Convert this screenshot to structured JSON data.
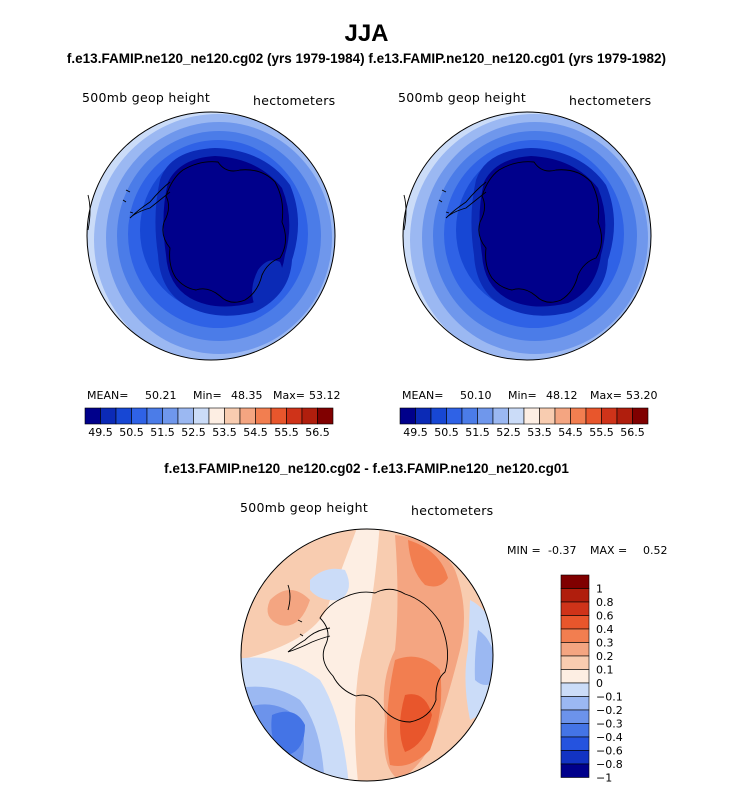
{
  "figure": {
    "title": "JJA",
    "runs_header": "f.e13.FAMIP.ne120_ne120.cg02 (yrs 1979-1984)  f.e13.FAMIP.ne120_ne120.cg01 (yrs 1979-1982)",
    "diff_title": "f.e13.FAMIP.ne120_ne120.cg02 - f.e13.FAMIP.ne120_ne120.cg01"
  },
  "colors": {
    "main_scale": [
      "#00008b",
      "#0b2ab6",
      "#1747d4",
      "#2f62e6",
      "#4b7ce8",
      "#6f97ec",
      "#9bb8f2",
      "#cbdcf8",
      "#fdeee3",
      "#f8ccb0",
      "#f4a581",
      "#f27e50",
      "#e8562c",
      "#cf3319",
      "#b01e0d",
      "#800000"
    ],
    "diff_scale": [
      "#00008b",
      "#1233c3",
      "#2553df",
      "#4474e6",
      "#6c93eb",
      "#9bb8f2",
      "#cbdcf8",
      "#fdeee3",
      "#f8ccb0",
      "#f4a581",
      "#f27e50",
      "#e8562c",
      "#cf3319",
      "#b01e0d",
      "#800000"
    ]
  },
  "chart_data": [
    {
      "type": "heatmap",
      "projection": "south-polar-stereographic",
      "title": "500mb geop height",
      "units": "hectometers",
      "case": "f.e13.FAMIP.ne120_ne120.cg02",
      "years": "1979-1984",
      "stats": {
        "mean_label": "MEAN=",
        "mean": "50.21",
        "min_label": "Min=",
        "min": "48.35",
        "max_label": "Max=",
        "max": "53.12"
      },
      "colorbar": {
        "tick_labels": [
          "49.5",
          "50.5",
          "51.5",
          "52.5",
          "53.5",
          "54.5",
          "55.5",
          "56.5"
        ],
        "levels": [
          49.0,
          49.5,
          50.0,
          50.5,
          51.0,
          51.5,
          52.0,
          52.5,
          53.0,
          53.5,
          54.0,
          54.5,
          55.0,
          55.5,
          56.0,
          56.5
        ]
      }
    },
    {
      "type": "heatmap",
      "projection": "south-polar-stereographic",
      "title": "500mb geop height",
      "units": "hectometers",
      "case": "f.e13.FAMIP.ne120_ne120.cg01",
      "years": "1979-1982",
      "stats": {
        "mean_label": "MEAN=",
        "mean": "50.10",
        "min_label": "Min=",
        "min": "48.12",
        "max_label": "Max=",
        "max": "53.20"
      },
      "colorbar": {
        "tick_labels": [
          "49.5",
          "50.5",
          "51.5",
          "52.5",
          "53.5",
          "54.5",
          "55.5",
          "56.5"
        ],
        "levels": [
          49.0,
          49.5,
          50.0,
          50.5,
          51.0,
          51.5,
          52.0,
          52.5,
          53.0,
          53.5,
          54.0,
          54.5,
          55.0,
          55.5,
          56.0,
          56.5
        ]
      }
    },
    {
      "type": "heatmap",
      "projection": "south-polar-stereographic",
      "title": "500mb geop height",
      "units": "hectometers",
      "case": "f.e13.FAMIP.ne120_ne120.cg02 - f.e13.FAMIP.ne120_ne120.cg01",
      "stats": {
        "min_label": "MIN =",
        "min": "-0.37",
        "max_label": "MAX =",
        "max": "0.52"
      },
      "colorbar": {
        "orientation": "vertical",
        "tick_labels": [
          "1",
          "0.8",
          "0.6",
          "0.4",
          "0.3",
          "0.2",
          "0.1",
          "0",
          "-0.1",
          "-0.2",
          "-0.3",
          "-0.4",
          "-0.6",
          "-0.8",
          "-1"
        ]
      }
    }
  ]
}
